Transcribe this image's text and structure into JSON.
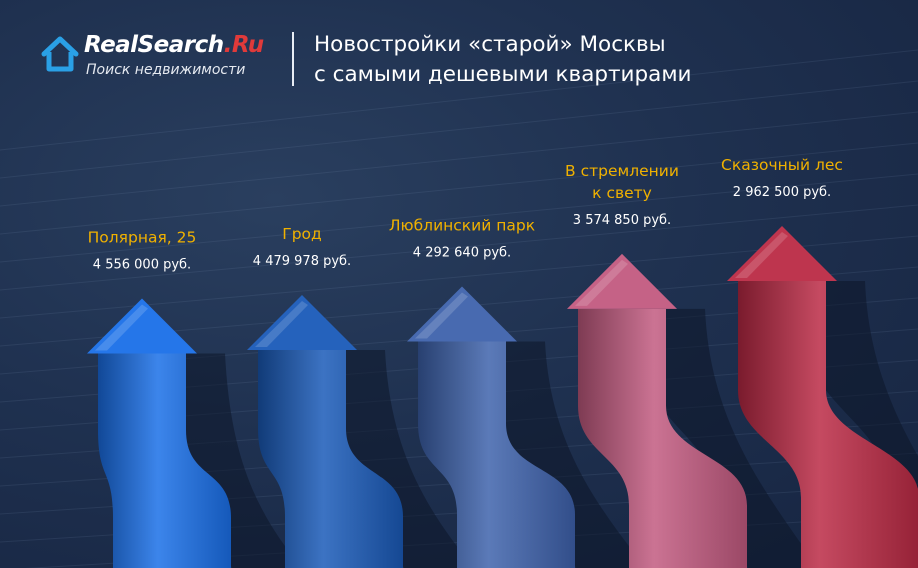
{
  "brand": {
    "part1": "RealSearch",
    "part2": ".Ru",
    "tagline": "Поиск недвижимости"
  },
  "title": "Новостройки «старой» Москвы\nс самыми дешевыми квартирами",
  "colors": {
    "label_name": "#f0b100",
    "label_value": "#ffffff",
    "background": "#1f3150"
  },
  "chart_data": {
    "type": "bar",
    "title": "Новостройки «старой» Москвы с самыми дешевыми квартирами",
    "categories": [
      "Полярная, 25",
      "Грод",
      "Люблинский парк",
      "В стремлении к свету",
      "Сказочный лес"
    ],
    "category_lines": [
      [
        "Полярная, 25"
      ],
      [
        "Грод"
      ],
      [
        "Люблинский парк"
      ],
      [
        "В стремлении",
        "к свету"
      ],
      [
        "Сказочный лес"
      ]
    ],
    "values": [
      4556000,
      4479978,
      4292640,
      3574850,
      2962500
    ],
    "value_labels": [
      "4 556 000 руб.",
      "4 479 978 руб.",
      "4 292 640 руб.",
      "3 574 850 руб.",
      "2 962 500 руб."
    ],
    "colors": [
      "#1a6fe8",
      "#1a5ab8",
      "#3e62ac",
      "#c25a80",
      "#bb2a45"
    ]
  }
}
